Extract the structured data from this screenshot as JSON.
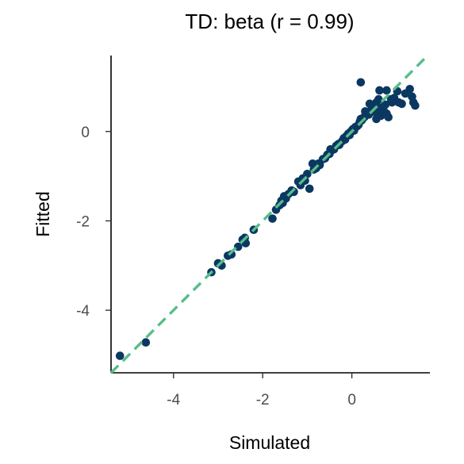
{
  "chart_data": {
    "type": "scatter",
    "title": "TD: beta (r = 0.99)",
    "xlabel": "Simulated",
    "ylabel": "Fitted",
    "xlim": [
      -5.4,
      1.75
    ],
    "ylim": [
      -5.4,
      1.7
    ],
    "xticks": [
      -4,
      -2,
      0
    ],
    "yticks": [
      -4,
      -2,
      0
    ],
    "grid": false,
    "reference_line": {
      "style": "dashed",
      "slope": 1,
      "intercept": 0
    },
    "colors": {
      "points": "#0b3861",
      "reference_line": "#57bd8a"
    },
    "points": [
      [
        -5.2,
        -5.02
      ],
      [
        -4.62,
        -4.72
      ],
      [
        -3.15,
        -3.15
      ],
      [
        -3.0,
        -2.95
      ],
      [
        -2.92,
        -3.0
      ],
      [
        -2.78,
        -2.78
      ],
      [
        -2.7,
        -2.75
      ],
      [
        -2.55,
        -2.58
      ],
      [
        -2.45,
        -2.42
      ],
      [
        -2.38,
        -2.5
      ],
      [
        -2.4,
        -2.38
      ],
      [
        -2.2,
        -2.2
      ],
      [
        -1.78,
        -1.95
      ],
      [
        -1.7,
        -1.75
      ],
      [
        -1.62,
        -1.65
      ],
      [
        -1.58,
        -1.55
      ],
      [
        -1.55,
        -1.6
      ],
      [
        -1.52,
        -1.45
      ],
      [
        -1.48,
        -1.5
      ],
      [
        -1.42,
        -1.4
      ],
      [
        -1.35,
        -1.32
      ],
      [
        -1.3,
        -1.35
      ],
      [
        -1.2,
        -1.12
      ],
      [
        -1.15,
        -1.2
      ],
      [
        -1.1,
        -1.05
      ],
      [
        -1.05,
        -1.1
      ],
      [
        -1.0,
        -0.95
      ],
      [
        -0.95,
        -1.28
      ],
      [
        -0.88,
        -0.72
      ],
      [
        -0.85,
        -0.85
      ],
      [
        -0.8,
        -0.82
      ],
      [
        -0.75,
        -0.72
      ],
      [
        -0.72,
        -0.75
      ],
      [
        -0.65,
        -0.62
      ],
      [
        -0.6,
        -0.6
      ],
      [
        -0.55,
        -0.52
      ],
      [
        -0.5,
        -0.5
      ],
      [
        -0.45,
        -0.42
      ],
      [
        -0.48,
        -0.4
      ],
      [
        -0.4,
        -0.4
      ],
      [
        -0.35,
        -0.32
      ],
      [
        -0.3,
        -0.28
      ],
      [
        -0.28,
        -0.3
      ],
      [
        -0.22,
        -0.22
      ],
      [
        -0.18,
        -0.15
      ],
      [
        -0.15,
        -0.18
      ],
      [
        -0.12,
        -0.1
      ],
      [
        -0.08,
        -0.05
      ],
      [
        -0.05,
        -0.08
      ],
      [
        -0.02,
        0.0
      ],
      [
        0.02,
        0.05
      ],
      [
        0.05,
        0.02
      ],
      [
        0.08,
        0.1
      ],
      [
        0.12,
        0.12
      ],
      [
        0.15,
        0.15
      ],
      [
        0.18,
        0.22
      ],
      [
        0.2,
        0.28
      ],
      [
        0.22,
        0.25
      ],
      [
        0.25,
        0.3
      ],
      [
        0.28,
        0.32
      ],
      [
        0.3,
        0.35
      ],
      [
        0.35,
        0.4
      ],
      [
        0.38,
        0.38
      ],
      [
        0.42,
        0.45
      ],
      [
        0.45,
        0.5
      ],
      [
        0.48,
        0.45
      ],
      [
        0.52,
        0.55
      ],
      [
        0.55,
        0.42
      ],
      [
        0.58,
        0.35
      ],
      [
        0.62,
        0.5
      ],
      [
        0.65,
        0.48
      ],
      [
        0.7,
        0.55
      ],
      [
        0.72,
        0.45
      ],
      [
        0.75,
        0.6
      ],
      [
        0.78,
        0.4
      ],
      [
        0.55,
        0.65
      ],
      [
        0.62,
        0.92
      ],
      [
        0.78,
        0.92
      ],
      [
        0.2,
        1.1
      ],
      [
        0.55,
        0.28
      ],
      [
        0.65,
        0.35
      ],
      [
        0.82,
        0.32
      ],
      [
        0.9,
        0.65
      ],
      [
        0.95,
        0.75
      ],
      [
        1.02,
        0.9
      ],
      [
        1.05,
        0.65
      ],
      [
        1.12,
        0.62
      ],
      [
        1.3,
        0.95
      ],
      [
        1.35,
        0.78
      ],
      [
        1.38,
        0.65
      ],
      [
        1.42,
        0.58
      ],
      [
        0.4,
        0.62
      ],
      [
        0.3,
        0.45
      ],
      [
        0.6,
        0.72
      ],
      [
        0.88,
        0.72
      ],
      [
        1.2,
        0.85
      ]
    ]
  }
}
